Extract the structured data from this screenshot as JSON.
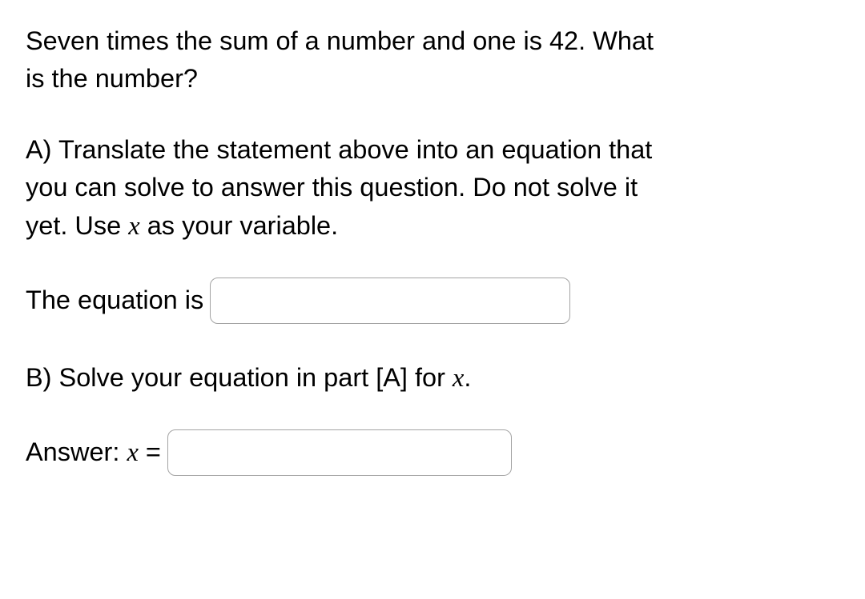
{
  "problem": {
    "statement_line1": "Seven times the sum of a number and one is 42. What",
    "statement_line2": "is the number?"
  },
  "partA": {
    "line1_pre": "A) Translate the statement above into an equation that",
    "line2": "you can solve to answer this question. Do not solve it",
    "line3_pre": "yet. Use ",
    "variable": "x",
    "line3_post": " as your variable.",
    "equation_label": "The equation is",
    "equation_value": ""
  },
  "partB": {
    "prompt_pre": "B) Solve your equation in part [A] for ",
    "variable": "x",
    "prompt_post": ".",
    "answer_label_pre": "Answer: ",
    "answer_var": "x",
    "answer_equals": " = ",
    "answer_value": ""
  },
  "style": {
    "text_color": "#000000",
    "background_color": "#ffffff",
    "input_border_color": "#a3a3a3",
    "input_border_radius": 10,
    "base_font_size": 32.5
  }
}
